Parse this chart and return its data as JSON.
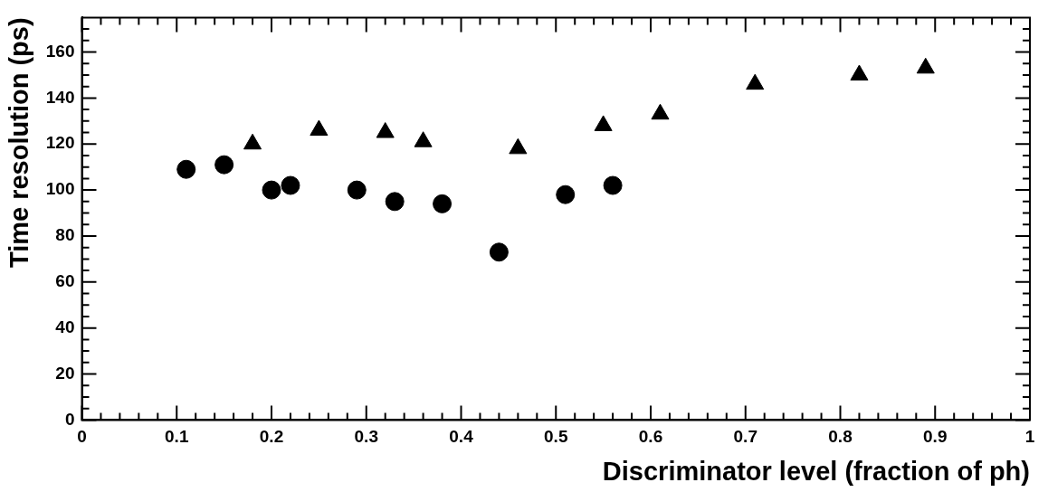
{
  "chart_data": {
    "type": "scatter",
    "xlabel": "Discriminator level (fraction of ph)",
    "ylabel": "Time resolution (ps)",
    "xlim": [
      0,
      1
    ],
    "ylim": [
      0,
      175
    ],
    "xticks": [
      0,
      {
        "value": 0.02,
        "label": null
      },
      {
        "value": 0.04,
        "label": null
      },
      {
        "value": 0.06,
        "label": null
      },
      {
        "value": 0.08,
        "label": null
      },
      0.1,
      {
        "value": 0.12,
        "label": null
      },
      {
        "value": 0.14,
        "label": null
      },
      {
        "value": 0.16,
        "label": null
      },
      {
        "value": 0.18,
        "label": null
      },
      0.2,
      {
        "value": 0.22,
        "label": null
      },
      {
        "value": 0.24,
        "label": null
      },
      {
        "value": 0.26,
        "label": null
      },
      {
        "value": 0.28,
        "label": null
      },
      0.3,
      {
        "value": 0.32,
        "label": null
      },
      {
        "value": 0.34,
        "label": null
      },
      {
        "value": 0.36,
        "label": null
      },
      {
        "value": 0.38,
        "label": null
      },
      0.4,
      {
        "value": 0.42,
        "label": null
      },
      {
        "value": 0.44,
        "label": null
      },
      {
        "value": 0.46,
        "label": null
      },
      {
        "value": 0.48,
        "label": null
      },
      0.5,
      {
        "value": 0.52,
        "label": null
      },
      {
        "value": 0.54,
        "label": null
      },
      {
        "value": 0.56,
        "label": null
      },
      {
        "value": 0.58,
        "label": null
      },
      0.6,
      {
        "value": 0.62,
        "label": null
      },
      {
        "value": 0.64,
        "label": null
      },
      {
        "value": 0.66,
        "label": null
      },
      {
        "value": 0.68,
        "label": null
      },
      0.7,
      {
        "value": 0.72,
        "label": null
      },
      {
        "value": 0.74,
        "label": null
      },
      {
        "value": 0.76,
        "label": null
      },
      {
        "value": 0.78,
        "label": null
      },
      0.8,
      {
        "value": 0.82,
        "label": null
      },
      {
        "value": 0.84,
        "label": null
      },
      {
        "value": 0.86,
        "label": null
      },
      {
        "value": 0.88,
        "label": null
      },
      0.9,
      {
        "value": 0.92,
        "label": null
      },
      {
        "value": 0.94,
        "label": null
      },
      {
        "value": 0.96,
        "label": null
      },
      {
        "value": 0.98,
        "label": null
      },
      1
    ],
    "yticks": [
      0,
      {
        "value": 5,
        "label": null
      },
      {
        "value": 10,
        "label": null
      },
      {
        "value": 15,
        "label": null
      },
      20,
      {
        "value": 25,
        "label": null
      },
      {
        "value": 30,
        "label": null
      },
      {
        "value": 35,
        "label": null
      },
      40,
      {
        "value": 45,
        "label": null
      },
      {
        "value": 50,
        "label": null
      },
      {
        "value": 55,
        "label": null
      },
      60,
      {
        "value": 65,
        "label": null
      },
      {
        "value": 70,
        "label": null
      },
      {
        "value": 75,
        "label": null
      },
      80,
      {
        "value": 85,
        "label": null
      },
      {
        "value": 90,
        "label": null
      },
      {
        "value": 95,
        "label": null
      },
      100,
      {
        "value": 105,
        "label": null
      },
      {
        "value": 110,
        "label": null
      },
      {
        "value": 115,
        "label": null
      },
      120,
      {
        "value": 125,
        "label": null
      },
      {
        "value": 130,
        "label": null
      },
      {
        "value": 135,
        "label": null
      },
      140,
      {
        "value": 145,
        "label": null
      },
      {
        "value": 150,
        "label": null
      },
      {
        "value": 155,
        "label": null
      },
      160,
      {
        "value": 165,
        "label": null
      },
      {
        "value": 170,
        "label": null
      }
    ],
    "grid": false,
    "legend": false,
    "series": [
      {
        "color": "#000000",
        "marker": "circle",
        "x": [
          0.11,
          0.15,
          0.2,
          0.22,
          0.29,
          0.33,
          0.38,
          0.44,
          0.51,
          0.56
        ],
        "values": [
          109,
          111,
          100,
          102,
          100,
          95,
          94,
          73,
          98,
          102
        ]
      },
      {
        "color": "#000000",
        "marker": "triangle",
        "x": [
          0.18,
          0.25,
          0.32,
          0.36,
          0.46,
          0.55,
          0.61,
          0.71,
          0.82,
          0.89
        ],
        "values": [
          120,
          126,
          125,
          121,
          118,
          128,
          133,
          146,
          150,
          153
        ]
      }
    ]
  }
}
